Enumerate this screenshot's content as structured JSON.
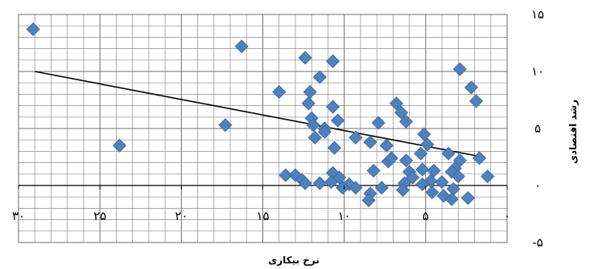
{
  "chart_data": {
    "type": "scatter",
    "xlabel": "نرخ بیکاری",
    "ylabel": "رشد اقتصادی",
    "x_reversed": true,
    "xlim": [
      30,
      0
    ],
    "ylim": [
      -5,
      15
    ],
    "x_ticks": [
      {
        "value": 30,
        "label": "۳۰"
      },
      {
        "value": 25,
        "label": "۲۵"
      },
      {
        "value": 20,
        "label": "۲۰"
      },
      {
        "value": 15,
        "label": "۱۵"
      },
      {
        "value": 10,
        "label": "۱۰"
      },
      {
        "value": 5,
        "label": "۵"
      },
      {
        "value": 0,
        "label": "۰"
      }
    ],
    "y_ticks": [
      {
        "value": 15,
        "label": "۱۵"
      },
      {
        "value": 10,
        "label": "۱۰"
      },
      {
        "value": 5,
        "label": "۵"
      },
      {
        "value": 0,
        "label": "۰"
      },
      {
        "value": -5,
        "label": "-۵"
      }
    ],
    "grid": true,
    "colors": {
      "marker": "#4F81BD",
      "marker_edge": "#3A6599",
      "grid": "#8c8c8c",
      "trend": "#000000"
    },
    "trendline": {
      "x": [
        29,
        1.5
      ],
      "y": [
        10,
        2.5
      ]
    },
    "series": [
      {
        "points": [
          [
            29.1,
            13.7
          ],
          [
            16.3,
            12.2
          ],
          [
            12.4,
            11.2
          ],
          [
            10.7,
            10.9
          ],
          [
            2.9,
            10.2
          ],
          [
            11.5,
            9.5
          ],
          [
            2.2,
            8.6
          ],
          [
            14,
            8.2
          ],
          [
            12.1,
            8.2
          ],
          [
            1.9,
            7.4
          ],
          [
            10.7,
            6.9
          ],
          [
            12.2,
            7.2
          ],
          [
            6.8,
            7.2
          ],
          [
            6.5,
            6.4
          ],
          [
            12,
            5.9
          ],
          [
            10.4,
            5.7
          ],
          [
            11.9,
            5.3
          ],
          [
            7.9,
            5.5
          ],
          [
            6.2,
            5.6
          ],
          [
            17.3,
            5.3
          ],
          [
            11.2,
            5
          ],
          [
            11.2,
            4.7
          ],
          [
            9.3,
            4.2
          ],
          [
            11.8,
            4.2
          ],
          [
            5.1,
            4.5
          ],
          [
            10.6,
            3.3
          ],
          [
            8.4,
            3.8
          ],
          [
            4.9,
            3.6
          ],
          [
            23.8,
            3.5
          ],
          [
            7.4,
            3.5
          ],
          [
            7.3,
            2.1
          ],
          [
            8.2,
            1.3
          ],
          [
            1.7,
            2.4
          ],
          [
            5.3,
            2.8
          ],
          [
            3.6,
            2.8
          ],
          [
            7.1,
            2.4
          ],
          [
            2.9,
            2.2
          ],
          [
            6.2,
            2.2
          ],
          [
            3.2,
            1.5
          ],
          [
            5.2,
            1.4
          ],
          [
            3.4,
            1.2
          ],
          [
            6,
            1.2
          ],
          [
            4.5,
            1.3
          ],
          [
            13,
            0.9
          ],
          [
            13.6,
            0.9
          ],
          [
            10.7,
            1.1
          ],
          [
            3,
            0.8
          ],
          [
            10.3,
            0.7
          ],
          [
            12.6,
            0.5
          ],
          [
            5.8,
            0.7
          ],
          [
            10.8,
            0.3
          ],
          [
            4.7,
            0.4
          ],
          [
            6.3,
            0.2
          ],
          [
            5.2,
            0.1
          ],
          [
            1.2,
            0.8
          ],
          [
            11.5,
            0.2
          ],
          [
            12.4,
            0.2
          ],
          [
            4,
            0.3
          ],
          [
            9.7,
            0.1
          ],
          [
            9.3,
            -0.2
          ],
          [
            10.1,
            -0.2
          ],
          [
            7.7,
            -0.2
          ],
          [
            3.3,
            -0.3
          ],
          [
            6.4,
            -0.4
          ],
          [
            4.6,
            -0.6
          ],
          [
            8.4,
            -0.7
          ],
          [
            3.9,
            -0.9
          ],
          [
            8.5,
            -1.3
          ],
          [
            2.4,
            -1.1
          ],
          [
            3.4,
            -1.2
          ]
        ]
      }
    ]
  }
}
